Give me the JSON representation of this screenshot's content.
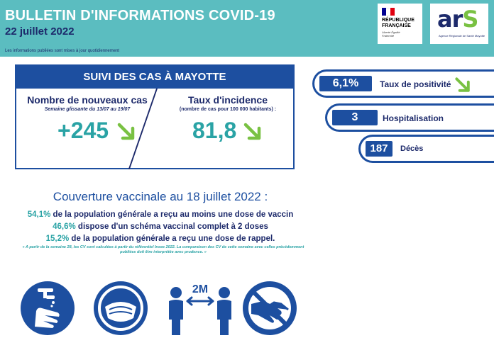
{
  "header": {
    "title": "BULLETIN D'INFORMATIONS COVID-19",
    "date": "22 juillet 2022",
    "note": "Les informations publiées sont mises à jour quotidiennement",
    "logo_rf": {
      "line1": "RÉPUBLIQUE",
      "line2": "FRANÇAISE",
      "motto": "Liberté Égalité Fraternité",
      "flag_colors": [
        "#000091",
        "#ffffff",
        "#e1000f"
      ]
    },
    "logo_ars": {
      "text_ar": "ar",
      "text_s": "S",
      "subtitle": "Agence Régionale de Santé Mayotte"
    }
  },
  "cases_box": {
    "heading": "SUIVI DES CAS À MAYOTTE",
    "left": {
      "title": "Nombre de nouveaux cas",
      "subtitle": "Semaine glissante du 13/07 au 19/07",
      "value": "+245",
      "trend_icon": "arrow-down-right-icon"
    },
    "right": {
      "title": "Taux d'incidence",
      "subtitle": "(nombre de cas pour 100 000 habitants) :",
      "value": "81,8",
      "trend_icon": "arrow-down-right-icon"
    }
  },
  "indicators": [
    {
      "value": "6,1%",
      "label": "Taux de positivité",
      "trend_icon": "arrow-down-right-icon"
    },
    {
      "value": "3",
      "label": "Hospitalisation"
    },
    {
      "value": "187",
      "label": "Décès"
    }
  ],
  "vaccination": {
    "title": "Couverture vaccinale au 18 juillet 2022 :",
    "lines": [
      {
        "pct": "54,1%",
        "text": " de la population générale a reçu au moins une dose de vaccin"
      },
      {
        "pct": "46,6%",
        "text": " dispose d'un schéma vaccinal complet à 2 doses"
      },
      {
        "pct": "15,2%",
        "text": " de la population générale a reçu une dose de rappel."
      }
    ],
    "note": "« A partir de la semaine 28, les CV sont calculées à partir du référentiel Insee 2022. La comparaison des CV de cette semaine avec celles précédemment publiées doit être interprétée avec prudence. »"
  },
  "gestures": {
    "distance_label": "2M",
    "icons": [
      "hand-washing-icon",
      "face-mask-icon",
      "social-distance-icon",
      "no-handshake-icon"
    ]
  },
  "colors": {
    "header_bg": "#5bbdc0",
    "navy": "#1d2a6b",
    "blue": "#1d4fa0",
    "teal": "#2aa3a5",
    "green": "#79c142"
  }
}
